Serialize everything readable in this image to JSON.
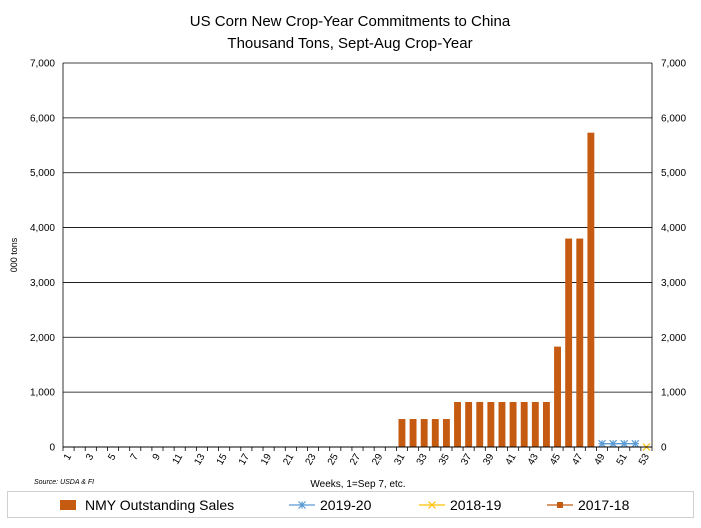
{
  "chart_data": {
    "type": "bar",
    "title": "US Corn New Crop-Year Commitments to China",
    "subtitle": "Thousand Tons, Sept-Aug Crop-Year",
    "xlabel": "Weeks, 1=Sep 7, etc.",
    "ylabel": "000 tons",
    "source": "Source: USDA & FI",
    "ylim": [
      0,
      7000
    ],
    "y_ticks": [
      0,
      1000,
      2000,
      3000,
      4000,
      5000,
      6000,
      7000
    ],
    "y_tick_labels": [
      "0",
      "1,000",
      "2,000",
      "3,000",
      "4,000",
      "5,000",
      "6,000",
      "7,000"
    ],
    "x": [
      1,
      2,
      3,
      4,
      5,
      6,
      7,
      8,
      9,
      10,
      11,
      12,
      13,
      14,
      15,
      16,
      17,
      18,
      19,
      20,
      21,
      22,
      23,
      24,
      25,
      26,
      27,
      28,
      29,
      30,
      31,
      32,
      33,
      34,
      35,
      36,
      37,
      38,
      39,
      40,
      41,
      42,
      43,
      44,
      45,
      46,
      47,
      48,
      49,
      50,
      51,
      52,
      53
    ],
    "x_tick_labels": [
      "1",
      "3",
      "5",
      "7",
      "9",
      "11",
      "13",
      "15",
      "17",
      "19",
      "21",
      "23",
      "25",
      "27",
      "29",
      "31",
      "33",
      "35",
      "37",
      "39",
      "41",
      "43",
      "45",
      "47",
      "49",
      "51",
      "53"
    ],
    "grid": true,
    "legend_position": "bottom",
    "series": [
      {
        "name": "NMY Outstanding Sales",
        "type": "bar",
        "color": "#C55A11",
        "values": [
          0,
          0,
          0,
          0,
          0,
          0,
          0,
          0,
          0,
          0,
          0,
          0,
          0,
          0,
          0,
          0,
          0,
          0,
          0,
          0,
          0,
          0,
          0,
          0,
          0,
          0,
          0,
          0,
          0,
          0,
          510,
          510,
          510,
          510,
          510,
          820,
          820,
          820,
          820,
          820,
          820,
          820,
          820,
          820,
          1830,
          3800,
          3800,
          5730,
          null,
          null,
          null,
          null,
          null
        ]
      },
      {
        "name": "2019-20",
        "type": "line",
        "marker": "asterisk",
        "color": "#5B9BD5",
        "values": [
          null,
          null,
          null,
          null,
          null,
          null,
          null,
          null,
          null,
          null,
          null,
          null,
          null,
          null,
          null,
          null,
          null,
          null,
          null,
          null,
          null,
          null,
          null,
          null,
          null,
          null,
          null,
          null,
          null,
          null,
          null,
          null,
          null,
          null,
          null,
          null,
          null,
          null,
          null,
          null,
          null,
          null,
          null,
          null,
          null,
          null,
          null,
          null,
          60,
          60,
          60,
          60,
          null
        ]
      },
      {
        "name": "2018-19",
        "type": "line",
        "marker": "x",
        "color": "#FFC000",
        "values": [
          null,
          null,
          null,
          null,
          null,
          null,
          null,
          null,
          null,
          null,
          null,
          null,
          null,
          null,
          null,
          null,
          null,
          null,
          null,
          null,
          null,
          null,
          null,
          null,
          null,
          null,
          null,
          null,
          null,
          null,
          null,
          null,
          null,
          null,
          null,
          null,
          null,
          null,
          null,
          null,
          null,
          null,
          null,
          null,
          null,
          null,
          null,
          null,
          null,
          null,
          null,
          null,
          0
        ]
      },
      {
        "name": "2017-18",
        "type": "line",
        "marker": "square",
        "color": "#C55A11",
        "values": [
          null,
          null,
          null,
          null,
          null,
          null,
          null,
          null,
          null,
          null,
          null,
          null,
          null,
          null,
          null,
          null,
          null,
          null,
          null,
          null,
          null,
          null,
          null,
          null,
          null,
          null,
          null,
          null,
          null,
          null,
          null,
          null,
          null,
          null,
          null,
          null,
          null,
          null,
          null,
          null,
          null,
          null,
          null,
          null,
          null,
          null,
          null,
          null,
          null,
          null,
          null,
          null,
          null
        ]
      }
    ]
  }
}
